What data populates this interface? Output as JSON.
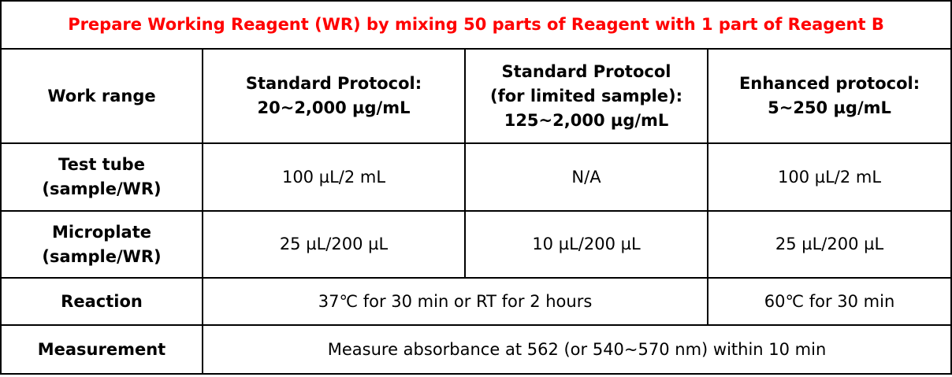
{
  "title": "Prepare Working Reagent (WR) by mixing 50 parts of Reagent with 1 part of Reagent B",
  "colors": {
    "title": "#ff0000",
    "border": "#000000",
    "text": "#000000"
  },
  "header": {
    "work_range": "Work range",
    "col1": [
      "Standard Protocol:",
      "20~2,000 µg/mL"
    ],
    "col2": [
      "Standard Protocol",
      "(for limited sample):",
      "125~2,000 µg/mL"
    ],
    "col3": [
      "Enhanced protocol:",
      "5~250 µg/mL"
    ]
  },
  "rows": {
    "test_tube": {
      "label": [
        "Test tube",
        "(sample/WR)"
      ],
      "col1": "100 µL/2 mL",
      "col2": "N/A",
      "col3": "100 µL/2 mL"
    },
    "microplate": {
      "label": [
        "Microplate",
        "(sample/WR)"
      ],
      "col1": "25 µL/200 µL",
      "col2": "10 µL/200 µL",
      "col3": "25 µL/200 µL"
    },
    "reaction": {
      "label": "Reaction",
      "standard": "37℃ for 30 min or RT for 2 hours",
      "enhanced": "60℃ for 30 min"
    },
    "measurement": {
      "label": "Measurement",
      "value": "Measure absorbance at 562 (or 540~570 nm) within 10 min"
    }
  }
}
